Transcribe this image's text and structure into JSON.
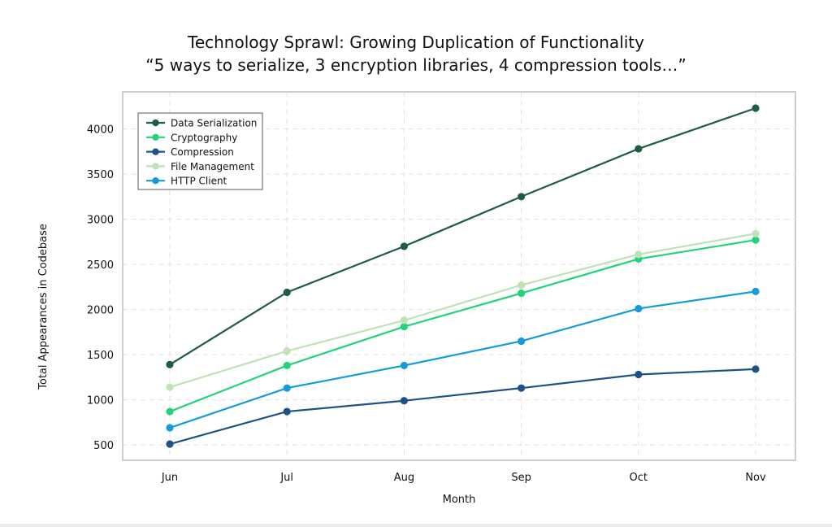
{
  "chart_data": {
    "type": "line",
    "title": "Technology Sprawl: Growing Duplication of Functionality",
    "subtitle": "“5 ways to serialize, 3 encryption libraries, 4 compression tools…”",
    "xlabel": "Month",
    "ylabel": "Total Appearances in Codebase",
    "categories": [
      "Jun",
      "Jul",
      "Aug",
      "Sep",
      "Oct",
      "Nov"
    ],
    "yticks": [
      500,
      1000,
      1500,
      2000,
      2500,
      3000,
      3500,
      4000
    ],
    "ylim": [
      330,
      4410
    ],
    "grid": true,
    "legend_position": "top-left",
    "series": [
      {
        "name": "Data Serialization",
        "color": "#1f5c40",
        "values": [
          1390,
          2190,
          2700,
          3250,
          3780,
          4230
        ]
      },
      {
        "name": "Cryptography",
        "color": "#22d37a",
        "values": [
          870,
          1380,
          1810,
          2180,
          2560,
          2770
        ]
      },
      {
        "name": "Compression",
        "color": "#1e5286",
        "values": [
          510,
          870,
          990,
          1130,
          1280,
          1340
        ]
      },
      {
        "name": "File Management",
        "color": "#bfe3b4",
        "values": [
          1140,
          1540,
          1880,
          2270,
          2610,
          2840
        ]
      },
      {
        "name": "HTTP Client",
        "color": "#169bd9",
        "values": [
          690,
          1130,
          1380,
          1650,
          2010,
          2200
        ]
      }
    ]
  }
}
